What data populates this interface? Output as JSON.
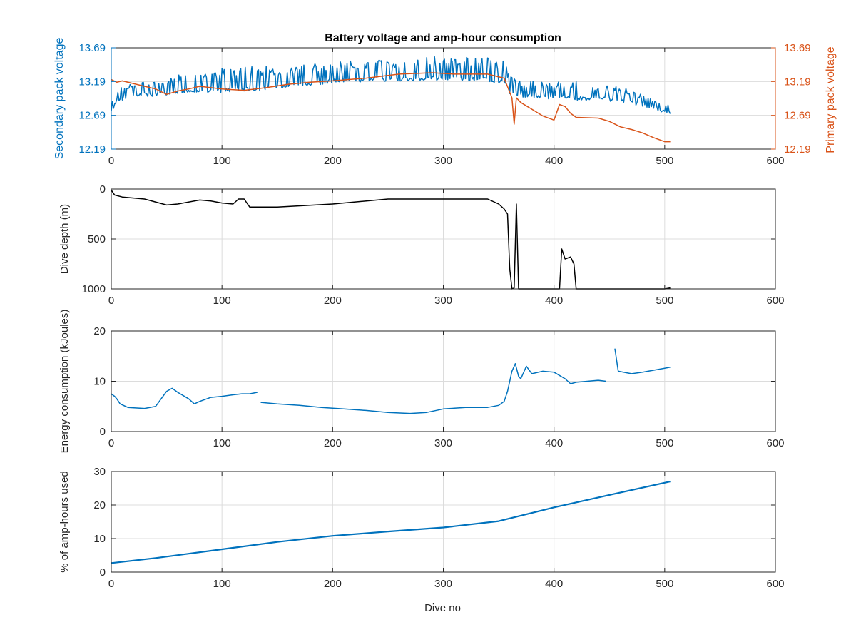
{
  "chart_data": [
    {
      "type": "line",
      "title": "Battery voltage and amp-hour consumption",
      "xlabel": "",
      "ylabel": "Secondary pack voltage",
      "ylabel_right": "Primary pack voltage",
      "xlim": [
        0,
        600
      ],
      "ylim": [
        12.19,
        13.69
      ],
      "ylim_right": [
        12.19,
        13.69
      ],
      "xticks": [
        "0",
        "100",
        "200",
        "300",
        "400",
        "500",
        "600"
      ],
      "yticks": [
        "12.19",
        "12.69",
        "13.19",
        "13.69"
      ],
      "yticks_right": [
        "12.19",
        "12.69",
        "13.19",
        "13.69"
      ],
      "grid": true,
      "colors": {
        "left": "#0072BD",
        "right": "#D95319"
      },
      "series": [
        {
          "axis": "left",
          "color": "#0072BD",
          "base": [
            [
              0,
              12.75
            ],
            [
              5,
              12.92
            ],
            [
              20,
              12.98
            ],
            [
              50,
              13.02
            ],
            [
              100,
              13.06
            ],
            [
              150,
              13.1
            ],
            [
              200,
              13.2
            ],
            [
              250,
              13.22
            ],
            [
              300,
              13.24
            ],
            [
              340,
              13.22
            ],
            [
              355,
              13.18
            ],
            [
              360,
              13.0
            ],
            [
              375,
              12.98
            ],
            [
              400,
              12.96
            ],
            [
              430,
              12.94
            ],
            [
              460,
              12.92
            ],
            [
              500,
              12.76
            ],
            [
              505,
              12.73
            ]
          ],
          "spike": [
            [
              0,
              0.15
            ],
            [
              100,
              0.35
            ],
            [
              200,
              0.28
            ],
            [
              300,
              0.33
            ],
            [
              350,
              0.32
            ],
            [
              360,
              0.3
            ],
            [
              370,
              0.22
            ],
            [
              420,
              0.25
            ],
            [
              460,
              0.2
            ],
            [
              505,
              0.1
            ]
          ]
        },
        {
          "axis": "right",
          "color": "#D95319",
          "points": [
            [
              0,
              13.22
            ],
            [
              5,
              13.18
            ],
            [
              10,
              13.2
            ],
            [
              30,
              13.12
            ],
            [
              40,
              13.08
            ],
            [
              50,
              13.0
            ],
            [
              60,
              13.05
            ],
            [
              70,
              13.08
            ],
            [
              80,
              13.12
            ],
            [
              90,
              13.1
            ],
            [
              100,
              13.08
            ],
            [
              120,
              13.06
            ],
            [
              140,
              13.1
            ],
            [
              160,
              13.15
            ],
            [
              180,
              13.18
            ],
            [
              200,
              13.2
            ],
            [
              230,
              13.24
            ],
            [
              260,
              13.3
            ],
            [
              290,
              13.32
            ],
            [
              310,
              13.3
            ],
            [
              340,
              13.3
            ],
            [
              355,
              13.24
            ],
            [
              362,
              12.95
            ],
            [
              364,
              12.56
            ],
            [
              366,
              12.95
            ],
            [
              370,
              12.88
            ],
            [
              380,
              12.78
            ],
            [
              390,
              12.68
            ],
            [
              400,
              12.62
            ],
            [
              405,
              12.85
            ],
            [
              410,
              12.82
            ],
            [
              415,
              12.72
            ],
            [
              420,
              12.66
            ],
            [
              440,
              12.65
            ],
            [
              450,
              12.6
            ],
            [
              460,
              12.52
            ],
            [
              470,
              12.48
            ],
            [
              480,
              12.43
            ],
            [
              490,
              12.36
            ],
            [
              500,
              12.3
            ],
            [
              505,
              12.3
            ]
          ]
        }
      ]
    },
    {
      "type": "line",
      "xlabel": "",
      "ylabel": "Dive depth (m)",
      "xlim": [
        0,
        600
      ],
      "ylim": [
        0,
        1000
      ],
      "y_reversed": true,
      "xticks": [
        "0",
        "100",
        "200",
        "300",
        "400",
        "500",
        "600"
      ],
      "yticks": [
        "0",
        "500",
        "1000"
      ],
      "grid": true,
      "series": [
        {
          "color": "#000000",
          "points": [
            [
              0,
              10
            ],
            [
              3,
              60
            ],
            [
              10,
              80
            ],
            [
              30,
              100
            ],
            [
              50,
              160
            ],
            [
              60,
              150
            ],
            [
              80,
              110
            ],
            [
              90,
              120
            ],
            [
              100,
              140
            ],
            [
              110,
              150
            ],
            [
              115,
              100
            ],
            [
              120,
              100
            ],
            [
              125,
              180
            ],
            [
              150,
              180
            ],
            [
              200,
              150
            ],
            [
              250,
              100
            ],
            [
              300,
              100
            ],
            [
              340,
              100
            ],
            [
              350,
              150
            ],
            [
              355,
              200
            ],
            [
              358,
              250
            ],
            [
              360,
              800
            ],
            [
              362,
              1000
            ],
            [
              364,
              990
            ],
            [
              366,
              150
            ],
            [
              368,
              1000
            ],
            [
              370,
              1000
            ],
            [
              400,
              1000
            ],
            [
              405,
              1000
            ],
            [
              407,
              600
            ],
            [
              410,
              700
            ],
            [
              415,
              680
            ],
            [
              418,
              750
            ],
            [
              420,
              1000
            ],
            [
              450,
              1000
            ],
            [
              500,
              1000
            ],
            [
              505,
              990
            ]
          ]
        }
      ]
    },
    {
      "type": "line",
      "xlabel": "",
      "ylabel": "Energy consumption (kJoules)",
      "xlim": [
        0,
        600
      ],
      "ylim": [
        0,
        20
      ],
      "xticks": [
        "0",
        "100",
        "200",
        "300",
        "400",
        "500",
        "600"
      ],
      "yticks": [
        "0",
        "10",
        "20"
      ],
      "grid": true,
      "series": [
        {
          "color": "#0072BD",
          "points": [
            [
              0,
              7.5
            ],
            [
              3,
              7.0
            ],
            [
              5,
              6.5
            ],
            [
              8,
              5.5
            ],
            [
              15,
              4.8
            ],
            [
              30,
              4.6
            ],
            [
              40,
              5.0
            ],
            [
              50,
              8.0
            ],
            [
              55,
              8.6
            ],
            [
              60,
              7.8
            ],
            [
              70,
              6.5
            ],
            [
              75,
              5.5
            ],
            [
              80,
              6.0
            ],
            [
              90,
              6.8
            ],
            [
              100,
              7.0
            ],
            [
              110,
              7.3
            ],
            [
              118,
              7.5
            ],
            [
              125,
              7.5
            ],
            [
              132,
              7.8
            ]
          ]
        },
        {
          "color": "#0072BD",
          "points": [
            [
              135,
              5.8
            ],
            [
              150,
              5.5
            ],
            [
              170,
              5.2
            ],
            [
              190,
              4.8
            ],
            [
              210,
              4.5
            ],
            [
              230,
              4.2
            ],
            [
              250,
              3.8
            ],
            [
              270,
              3.6
            ],
            [
              285,
              3.8
            ],
            [
              300,
              4.5
            ],
            [
              320,
              4.8
            ],
            [
              340,
              4.8
            ],
            [
              350,
              5.2
            ],
            [
              355,
              6.0
            ],
            [
              358,
              8.0
            ],
            [
              360,
              10.0
            ],
            [
              362,
              12.0
            ],
            [
              365,
              13.5
            ],
            [
              368,
              11.0
            ],
            [
              370,
              10.5
            ],
            [
              375,
              13.0
            ],
            [
              380,
              11.5
            ],
            [
              390,
              12.0
            ],
            [
              400,
              11.8
            ],
            [
              410,
              10.5
            ],
            [
              415,
              9.5
            ],
            [
              420,
              9.8
            ],
            [
              430,
              10.0
            ],
            [
              440,
              10.2
            ],
            [
              447,
              10.0
            ]
          ]
        },
        {
          "color": "#0072BD",
          "points": [
            [
              455,
              16.5
            ],
            [
              458,
              12.0
            ],
            [
              470,
              11.5
            ],
            [
              480,
              11.8
            ],
            [
              490,
              12.2
            ],
            [
              500,
              12.6
            ],
            [
              505,
              12.8
            ]
          ]
        }
      ]
    },
    {
      "type": "line",
      "xlabel": "Dive no",
      "ylabel": "% of amp-hours used",
      "xlim": [
        0,
        600
      ],
      "ylim": [
        0,
        30
      ],
      "xticks": [
        "0",
        "100",
        "200",
        "300",
        "400",
        "500",
        "600"
      ],
      "yticks": [
        "0",
        "10",
        "20",
        "30"
      ],
      "grid": true,
      "series": [
        {
          "color": "#0072BD",
          "points": [
            [
              0,
              2.7
            ],
            [
              40,
              4.2
            ],
            [
              100,
              6.8
            ],
            [
              150,
              9.0
            ],
            [
              200,
              10.8
            ],
            [
              250,
              12.1
            ],
            [
              300,
              13.3
            ],
            [
              350,
              15.2
            ],
            [
              400,
              19.3
            ],
            [
              450,
              23.0
            ],
            [
              505,
              27.0
            ]
          ]
        }
      ]
    }
  ]
}
